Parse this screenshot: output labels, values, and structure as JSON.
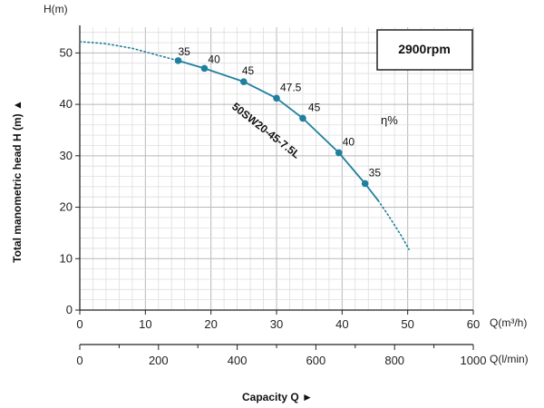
{
  "chart_data": {
    "type": "line",
    "y_axis_top_label": "H(m)",
    "ylabel": "Total manometric head H (m) ▲",
    "xlabel": "Capacity Q ►",
    "x_unit_label": "Q(m³/h)",
    "x2_unit_label": "Q(l/min)",
    "speed_label": "2900rpm",
    "efficiency_label": "η%",
    "curve_label": "50SW20-45-7.5L",
    "xlim": [
      0,
      60
    ],
    "ylim": [
      0,
      55
    ],
    "x_ticks": [
      "0",
      "10",
      "20",
      "30",
      "40",
      "50",
      "60"
    ],
    "y_ticks": [
      "0",
      "10",
      "20",
      "30",
      "40",
      "50"
    ],
    "x2_ticks": [
      "0",
      "200",
      "400",
      "600",
      "800",
      "1000"
    ],
    "x2_lim": [
      0,
      1000
    ],
    "grid": true,
    "series": [
      {
        "name": "dotted-left",
        "style": "dotted",
        "x": [
          0,
          4,
          8,
          10,
          15
        ],
        "y": [
          52.2,
          51.8,
          50.9,
          50.2,
          48.5
        ]
      },
      {
        "name": "50SW20-45-7.5L",
        "style": "solid",
        "x": [
          15,
          19,
          25,
          30,
          34,
          39.5,
          43.5,
          45.5
        ],
        "y": [
          48.5,
          47.0,
          44.4,
          41.2,
          37.3,
          30.6,
          24.6,
          21.3
        ]
      },
      {
        "name": "dotted-right",
        "style": "dotted",
        "x": [
          45.5,
          47,
          49,
          50.2
        ],
        "y": [
          21.3,
          18.5,
          14.5,
          11.8
        ]
      }
    ],
    "points": [
      {
        "x": 15,
        "y": 48.5,
        "label": "35"
      },
      {
        "x": 19,
        "y": 47.0,
        "label": "40"
      },
      {
        "x": 25,
        "y": 44.4,
        "label": "45"
      },
      {
        "x": 30,
        "y": 41.2,
        "label": "47.5"
      },
      {
        "x": 34,
        "y": 37.3,
        "label": "45"
      },
      {
        "x": 39.5,
        "y": 30.6,
        "label": "40"
      },
      {
        "x": 43.5,
        "y": 24.6,
        "label": "35"
      }
    ],
    "colors": {
      "curve": "#1f7f9e",
      "grid": "#cccccc",
      "axis": "#222222"
    }
  }
}
